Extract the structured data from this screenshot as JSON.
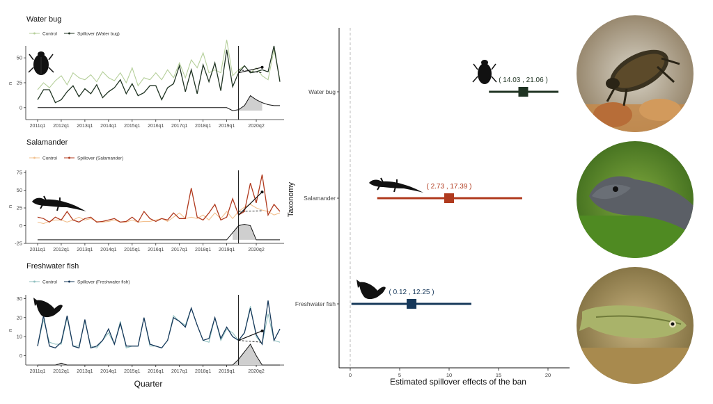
{
  "colors": {
    "water_bug": "#1f3322",
    "water_bug_control": "#b5cf9a",
    "salamander": "#b03a1e",
    "salamander_control": "#f2c08e",
    "fish": "#16385a",
    "fish_control": "#8fbfbf"
  },
  "icons": [
    "water-bug-silhouette",
    "salamander-silhouette",
    "fish-silhouette",
    "water-bug-photo",
    "salamander-photo",
    "fish-photo"
  ],
  "chart_data": [
    {
      "type": "line",
      "title": "Water bug",
      "xlabel": "",
      "ylabel": "n",
      "x_tick_labels": [
        "2011q1",
        "2012q1",
        "2013q1",
        "2014q1",
        "2015q1",
        "2016q1",
        "2017q1",
        "2018q1",
        "2019q1",
        "2020q2"
      ],
      "y_ticks": [
        0,
        25,
        50
      ],
      "ylim": [
        -12,
        62
      ],
      "intervention_quarter": 34,
      "series": [
        {
          "name": "Control",
          "values": [
            18,
            25,
            20,
            27,
            32,
            23,
            35,
            30,
            28,
            33,
            26,
            36,
            30,
            27,
            35,
            25,
            40,
            22,
            30,
            28,
            35,
            28,
            38,
            30,
            45,
            30,
            48,
            40,
            55,
            35,
            38,
            35,
            68,
            32,
            38,
            42,
            35,
            40,
            32,
            28,
            58,
            28
          ]
        },
        {
          "name": "Spillover (Water bug)",
          "values": [
            8,
            18,
            18,
            5,
            8,
            16,
            22,
            11,
            19,
            14,
            23,
            10,
            16,
            20,
            28,
            14,
            24,
            12,
            15,
            22,
            22,
            8,
            20,
            24,
            42,
            16,
            38,
            14,
            43,
            26,
            45,
            17,
            58,
            21,
            35,
            42,
            35,
            36,
            38,
            36,
            62,
            26
          ]
        }
      ],
      "spillover_baseline": [
        0,
        0,
        0,
        0,
        0,
        0,
        0,
        0,
        0,
        0,
        0,
        0,
        0,
        0,
        0,
        0,
        0,
        0,
        0,
        0,
        0,
        0,
        0,
        0,
        0,
        0,
        0,
        0,
        0,
        0,
        0,
        0,
        0,
        -3,
        -2,
        2,
        12,
        8,
        5,
        3,
        2,
        2
      ]
    },
    {
      "type": "line",
      "title": "Salamander",
      "xlabel": "",
      "ylabel": "n",
      "x_tick_labels": [
        "2011q1",
        "2012q1",
        "2013q1",
        "2014q1",
        "2015q1",
        "2016q1",
        "2017q1",
        "2018q1",
        "2019q1",
        "2020q2"
      ],
      "y_ticks": [
        -25,
        0,
        25,
        50,
        75
      ],
      "ylim": [
        -25,
        78
      ],
      "intervention_quarter": 34,
      "series": [
        {
          "name": "Control",
          "values": [
            5,
            3,
            6,
            8,
            8,
            5,
            8,
            12,
            8,
            10,
            6,
            5,
            6,
            8,
            5,
            5,
            8,
            5,
            6,
            6,
            8,
            10,
            6,
            12,
            18,
            10,
            12,
            10,
            15,
            8,
            18,
            10,
            20,
            10,
            20,
            26,
            30,
            25,
            22,
            20,
            15,
            18
          ]
        },
        {
          "name": "Spillover (Salamander)",
          "values": [
            12,
            10,
            5,
            12,
            8,
            20,
            8,
            5,
            10,
            12,
            5,
            6,
            8,
            10,
            5,
            6,
            12,
            5,
            20,
            10,
            6,
            10,
            8,
            18,
            10,
            10,
            53,
            12,
            8,
            18,
            30,
            8,
            12,
            38,
            15,
            20,
            60,
            32,
            72,
            15,
            30,
            20
          ]
        }
      ],
      "spillover_baseline": [
        -20,
        -20,
        -20,
        -20,
        -20,
        -20,
        -20,
        -20,
        -20,
        -20,
        -20,
        -20,
        -20,
        -20,
        -20,
        -20,
        -20,
        -20,
        -20,
        -20,
        -20,
        -20,
        -20,
        -20,
        -20,
        -20,
        -20,
        -20,
        -20,
        -20,
        -20,
        -20,
        -20,
        -10,
        0,
        2,
        0,
        -20,
        -20,
        -20,
        -20,
        -20
      ]
    },
    {
      "type": "line",
      "title": "Freshwater fish",
      "xlabel": "Quarter",
      "ylabel": "n",
      "x_tick_labels": [
        "2011q1",
        "2012q1",
        "2013q1",
        "2014q1",
        "2015q1",
        "2016q1",
        "2017q1",
        "2018q1",
        "2019q1",
        "2020q2"
      ],
      "y_ticks": [
        0,
        10,
        20,
        30
      ],
      "ylim": [
        -5,
        32
      ],
      "intervention_quarter": 34,
      "series": [
        {
          "name": "Control",
          "values": [
            5,
            19,
            7,
            6,
            6,
            20,
            5,
            5,
            18,
            5,
            4,
            8,
            12,
            6,
            18,
            4,
            5,
            5,
            20,
            5,
            5,
            4,
            8,
            21,
            18,
            16,
            25,
            16,
            8,
            7,
            20,
            8,
            14,
            12,
            8,
            12,
            26,
            10,
            6,
            22,
            8,
            7
          ]
        },
        {
          "name": "Spillover (Freshwater fish)",
          "values": [
            5,
            21,
            5,
            4,
            7,
            21,
            5,
            4,
            19,
            4,
            5,
            8,
            14,
            6,
            17,
            5,
            5,
            5,
            20,
            6,
            5,
            4,
            8,
            20,
            18,
            15,
            25,
            16,
            8,
            9,
            20,
            9,
            15,
            10,
            8,
            12,
            25,
            11,
            6,
            29,
            8,
            14
          ]
        }
      ],
      "spillover_baseline": [
        -5,
        -5,
        -5,
        -5,
        -4,
        -5,
        -5,
        -5,
        -5,
        -5,
        -5,
        -5,
        -5,
        -5,
        -5,
        -5,
        -5,
        -5,
        -5,
        -5,
        -5,
        -5,
        -5,
        -5,
        -5,
        -5,
        -5,
        -5,
        -5,
        -5,
        -5,
        -5,
        -5,
        -5,
        -2,
        2,
        6,
        0,
        -5,
        -5,
        -5,
        -5
      ]
    },
    {
      "type": "scatter",
      "title": "",
      "xlabel": "Estimated spillover effects of the ban",
      "ylabel": "Taxonomy",
      "xlim": [
        -1,
        22
      ],
      "x_ticks": [
        0,
        5,
        10,
        15,
        20
      ],
      "categories": [
        "Water bug",
        "Salamander",
        "Freshwater fish"
      ],
      "points": [
        {
          "category": "Water bug",
          "estimate": 17.5,
          "ci_low": 14.03,
          "ci_high": 21.06,
          "label": "( 14.03 , 21.06 )"
        },
        {
          "category": "Salamander",
          "estimate": 10.0,
          "ci_low": 2.73,
          "ci_high": 17.39,
          "label": "( 2.73 , 17.39 )"
        },
        {
          "category": "Freshwater fish",
          "estimate": 6.2,
          "ci_low": 0.12,
          "ci_high": 12.25,
          "label": "( 0.12 , 12.25 )"
        }
      ],
      "reference_line_x": 0
    }
  ]
}
